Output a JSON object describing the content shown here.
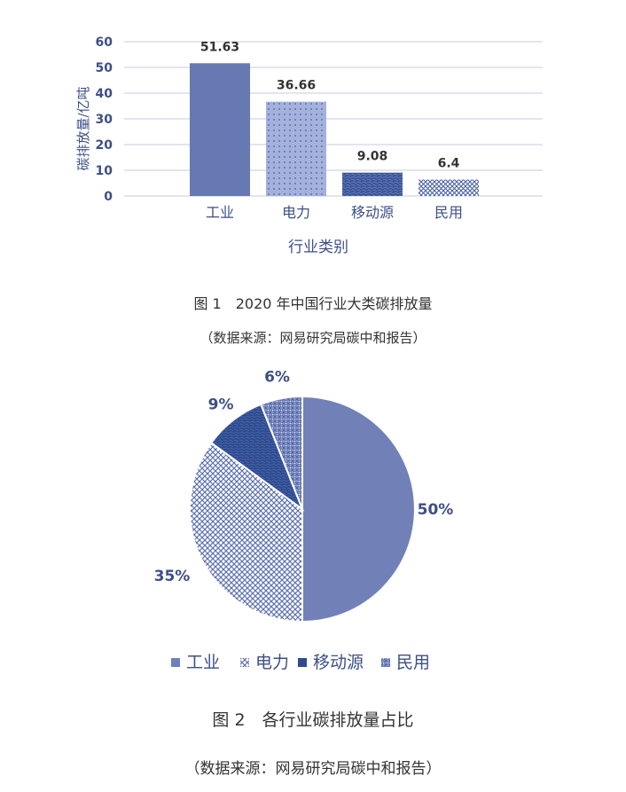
{
  "chart_data": [
    {
      "type": "bar",
      "categories": [
        "工业",
        "电力",
        "移动源",
        "民用"
      ],
      "values": [
        51.63,
        36.66,
        9.08,
        6.4
      ],
      "data_labels": [
        "51.63",
        "36.66",
        "9.08",
        "6.4"
      ],
      "xlabel": "行业类别",
      "ylabel": "碳排放量/亿吨",
      "ylim": [
        0,
        60
      ],
      "yticks": [
        "0",
        "10",
        "20",
        "30",
        "40",
        "50",
        "60"
      ],
      "grid": true,
      "bar_fills": [
        "solid",
        "dots",
        "texture",
        "crosshatch"
      ],
      "colors": {
        "bar": "#6679b3",
        "bar_light": "#9aa8d6",
        "bar_dark": "#3c5597",
        "axis_text": "#3d4f86",
        "grid": "#c6cbe0"
      }
    },
    {
      "type": "pie",
      "categories": [
        "工业",
        "电力",
        "移动源",
        "民用"
      ],
      "values": [
        50,
        35,
        9,
        6
      ],
      "data_labels": [
        "50%",
        "35%",
        "9%",
        "6%"
      ],
      "legend": {
        "placement": "bottom",
        "entries": [
          "工业",
          "电力",
          "移动源",
          "民用"
        ]
      },
      "slice_fills": [
        "solid",
        "crosshatch",
        "dark-texture",
        "dense-hatch"
      ],
      "colors": {
        "slice_main": "#7181b8",
        "slice_dark": "#2f4b8f",
        "label": "#3d4f86"
      }
    }
  ],
  "figure1": {
    "caption": "图 1　2020 年中国行业大类碳排放量",
    "source": "（数据来源：网易研究局碳中和报告）"
  },
  "figure2": {
    "caption": "图 2　各行业碳排放量占比",
    "source": "（数据来源：网易研究局碳中和报告）"
  }
}
